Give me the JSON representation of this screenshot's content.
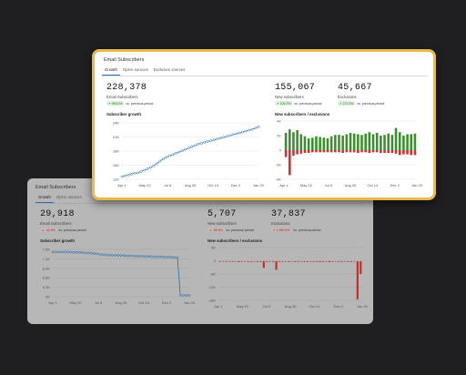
{
  "front": {
    "title": "Email Subscribers",
    "tabs": [
      {
        "label": "Growth",
        "active": true
      },
      {
        "label": "Opt-in sources",
        "active": false
      },
      {
        "label": "Exclusion sources",
        "active": false
      }
    ],
    "metrics": [
      {
        "value": "228,378",
        "label": "Email Subscribers",
        "change": "↗ 999.0%",
        "change_dir": "up",
        "period": "vs. previous period"
      },
      {
        "value": "155,067",
        "label": "New subscribers",
        "change": "↗ 109.2%",
        "change_dir": "up",
        "period": "vs. previous period"
      },
      {
        "value": "45,667",
        "label": "Exclusions",
        "change": "↗ 272.5%",
        "change_dir": "up",
        "period": "vs. previous period"
      }
    ],
    "growth_chart": {
      "title": "Subscriber growth",
      "chart_data": {
        "type": "line",
        "x_ticks": [
          "Apr 1",
          "May 20",
          "Jul 8",
          "Aug 26",
          "Oct 14",
          "Dec 2",
          "Jan 20"
        ],
        "y_ticks": [
          "12K",
          "16K",
          "18K",
          "21K",
          "24K"
        ],
        "values": [
          12.1,
          12.3,
          12.5,
          12.7,
          12.9,
          13.0,
          13.3,
          13.6,
          13.9,
          14.2,
          14.6,
          15.1,
          15.7,
          16.2,
          16.6,
          16.9,
          17.2,
          17.5,
          17.8,
          18.1,
          18.4,
          18.7,
          19.0,
          19.3,
          19.6,
          19.8,
          20.0,
          20.2,
          20.4,
          20.6,
          20.8,
          21.0,
          21.2,
          21.4,
          21.6,
          21.8,
          22.0,
          22.2,
          22.4,
          22.6,
          22.8,
          23.0,
          23.3,
          23.6
        ],
        "ylim": [
          11.5,
          24.5
        ],
        "color": "#2a6fb0"
      }
    },
    "bars_chart": {
      "title": "New subscribers / exclusions",
      "chart_data": {
        "type": "bar",
        "x_ticks": [
          "Apr 1",
          "May 20",
          "Jul 8",
          "Aug 26",
          "Oct 14",
          "Dec 2",
          "Jan 20"
        ],
        "y_ticks": [
          "4K",
          "2K",
          "0",
          "-2K",
          "-4K"
        ],
        "positive": [
          2.5,
          3.0,
          2.6,
          2.9,
          2.3,
          2.0,
          1.7,
          1.8,
          2.0,
          1.9,
          1.8,
          1.7,
          2.0,
          2.2,
          2.2,
          2.1,
          2.3,
          2.5,
          2.4,
          2.3,
          2.2,
          2.4,
          2.6,
          2.3,
          2.5,
          2.1,
          2.2,
          2.4,
          2.2,
          3.2,
          2.6,
          2.1,
          2.3,
          2.3,
          2.4
        ],
        "negative": [
          -1.0,
          -3.6,
          -0.8,
          -0.6,
          -0.5,
          -0.4,
          -0.4,
          -0.3,
          -0.3,
          -0.3,
          -0.3,
          -0.3,
          -0.3,
          -0.3,
          -0.3,
          -0.4,
          -0.3,
          -0.3,
          -0.3,
          -0.4,
          -0.3,
          -0.3,
          -0.4,
          -0.3,
          -0.3,
          -0.4,
          -0.4,
          -0.4,
          -0.4,
          -0.5,
          -0.7,
          -0.6,
          -0.6,
          -0.7,
          -0.7
        ],
        "ylim": [
          -4.2,
          4.2
        ],
        "pos_color": "#3e8e2f",
        "neg_color": "#d32f2f"
      }
    }
  },
  "back": {
    "title": "Email Subscribers",
    "tabs": [
      {
        "label": "Growth",
        "active": true
      },
      {
        "label": "Opt-in sources",
        "active": false
      }
    ],
    "metrics": [
      {
        "value": "29,918",
        "label": "Email Subscribers",
        "change": "↘ -43.5%",
        "change_dir": "down",
        "period": "vs. previous period"
      },
      {
        "value": "5,707",
        "label": "New subscribers",
        "change": "↘ -55.5%",
        "change_dir": "down",
        "period": "vs. previous period"
      },
      {
        "value": "37,837",
        "label": "Exclusions",
        "change": "↗ 1,380.5%",
        "change_dir": "up",
        "period": "vs. previous period"
      }
    ],
    "growth_chart": {
      "title": "Subscriber growth",
      "chart_data": {
        "type": "line",
        "x_ticks": [
          "Apr 1",
          "May 20",
          "Jul 8",
          "Aug 26",
          "Oct 14",
          "Dec 2",
          "Jan 20"
        ],
        "y_ticks": [
          "7.5K",
          "7.2K",
          "6.9K",
          "6.6K",
          "6.3K",
          "6K"
        ],
        "values": [
          7.46,
          7.46,
          7.46,
          7.46,
          7.46,
          7.46,
          7.46,
          7.45,
          7.45,
          7.45,
          7.44,
          7.43,
          7.43,
          7.42,
          7.41,
          7.4,
          7.38,
          7.37,
          7.36,
          7.36,
          7.35,
          7.35,
          7.35,
          7.34,
          7.34,
          7.33,
          7.33,
          7.33,
          7.32,
          7.32,
          7.32,
          7.31,
          7.31,
          7.31,
          7.3,
          7.3,
          7.3,
          7.3,
          7.29,
          7.29,
          7.29,
          7.28,
          7.27,
          6.0,
          6.0,
          6.0,
          6.0
        ],
        "ylim": [
          5.95,
          7.55
        ],
        "color": "#2a6fb0"
      }
    },
    "bars_chart": {
      "title": "New subscribers / exclusions",
      "chart_data": {
        "type": "bar",
        "x_ticks": [
          "Apr 1",
          "May 20",
          "Jul 8",
          "Aug 26",
          "Oct 14",
          "Dec 2",
          "Jan 20"
        ],
        "y_ticks": [
          "6K",
          "0",
          "-6K",
          "-12K",
          "-18K"
        ],
        "negative": [
          -0.3,
          -0.2,
          -0.3,
          -0.2,
          -0.3,
          -0.2,
          -0.4,
          -0.3,
          -0.2,
          -0.3,
          -0.3,
          -0.2,
          -0.3,
          -0.3,
          -3.1,
          -0.3,
          -0.2,
          -0.3,
          -4.0,
          -0.3,
          -0.3,
          -0.2,
          -0.3,
          -0.2,
          -0.3,
          -0.3,
          -0.2,
          -0.3,
          -0.3,
          -0.2,
          -0.3,
          -0.3,
          -0.4,
          -0.3,
          -0.2,
          -0.4,
          -0.3,
          -0.2,
          -0.3,
          -0.3,
          -0.2,
          -0.3,
          -0.3,
          -0.2,
          -18.0,
          -6.0
        ],
        "ylim": [
          -18.5,
          6.5
        ],
        "neg_color": "#c62828"
      }
    }
  }
}
